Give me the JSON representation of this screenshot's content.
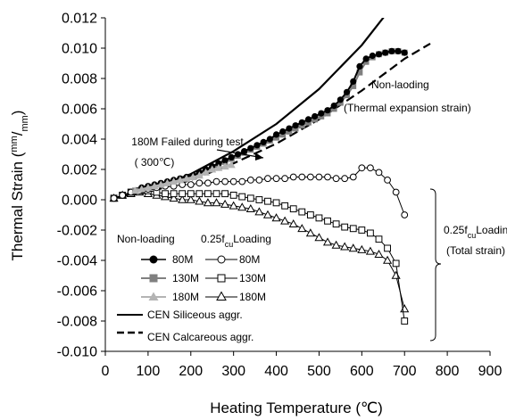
{
  "chart_data": {
    "type": "line",
    "xlabel": "Heating Temperature (℃)",
    "ylabel_prefix": "Thermal Strain (",
    "ylabel_num": "mm",
    "ylabel_den": "mm",
    "ylabel_suffix": ")",
    "xlim": [
      0,
      900
    ],
    "ylim": [
      -0.01,
      0.012
    ],
    "xticks": [
      "0",
      "100",
      "200",
      "300",
      "400",
      "500",
      "600",
      "700",
      "800",
      "900"
    ],
    "yticks": [
      "0.012",
      "0.010",
      "0.008",
      "0.006",
      "0.004",
      "0.002",
      "0.000",
      "-0.002",
      "-0.004",
      "-0.006",
      "-0.008",
      "-0.010"
    ],
    "grid": false,
    "annotations": {
      "failed_line1": "180M Failed during test",
      "failed_line2": "( 300℃)",
      "nonload_line1": "Non-laoding",
      "nonload_line2": "(Thermal expansion strain)",
      "loading_line1_a": "0.25f",
      "loading_line1_sub": "cu",
      "loading_line1_b": "Loading",
      "loading_line2": "(Total strain)"
    },
    "legend": {
      "header_left": "Non-loading",
      "header_right_a": "0.25f",
      "header_right_sub": "cu",
      "header_right_b": "Loading",
      "rows": [
        {
          "left": "80M",
          "right": "80M"
        },
        {
          "left": "130M",
          "right": "130M"
        },
        {
          "left": "180M",
          "right": "180M"
        }
      ],
      "cen_siliceous": "CEN Siliceous aggr.",
      "cen_calcareous": "CEN Calcareous aggr."
    },
    "colors": {
      "s80": "#000000",
      "s130": "#808080",
      "s180": "#b4b4b4",
      "open": "#000000"
    },
    "series": [
      {
        "name": "80M",
        "marker": "circle-filled",
        "color": "#000000",
        "x": [
          85,
          100,
          115,
          130,
          145,
          160,
          175,
          190,
          205,
          220,
          235,
          250,
          265,
          280,
          295,
          310,
          325,
          340,
          355,
          370,
          385,
          400,
          415,
          430,
          445,
          460,
          475,
          490,
          505,
          520,
          535,
          550,
          565,
          580,
          595,
          610,
          625,
          640,
          655,
          670,
          685,
          700
        ],
        "y": [
          0.0008,
          0.0009,
          0.001,
          0.0011,
          0.0012,
          0.0013,
          0.0014,
          0.0015,
          0.0016,
          0.0018,
          0.002,
          0.0022,
          0.0024,
          0.0026,
          0.0028,
          0.003,
          0.0032,
          0.0034,
          0.0036,
          0.0038,
          0.004,
          0.0043,
          0.0045,
          0.0047,
          0.0049,
          0.0051,
          0.0053,
          0.0055,
          0.0057,
          0.0059,
          0.0062,
          0.0066,
          0.0071,
          0.0078,
          0.0088,
          0.0093,
          0.0095,
          0.0096,
          0.0097,
          0.0098,
          0.0098,
          0.0097
        ]
      },
      {
        "name": "130M",
        "marker": "square-filled",
        "color": "#808080",
        "x": [
          70,
          85,
          100,
          115,
          130,
          145,
          160,
          175,
          190,
          205,
          220,
          235,
          250,
          265,
          280,
          295,
          310,
          325,
          340,
          355,
          370,
          385,
          400,
          415,
          430,
          445,
          460,
          475,
          490,
          505,
          520,
          535,
          550,
          565,
          580,
          595,
          610,
          625,
          640,
          655,
          670,
          685,
          700
        ],
        "y": [
          0.0006,
          0.0007,
          0.0008,
          0.0009,
          0.001,
          0.0011,
          0.0012,
          0.0013,
          0.0014,
          0.0015,
          0.0017,
          0.0019,
          0.0021,
          0.0023,
          0.0025,
          0.0027,
          0.0029,
          0.0031,
          0.0033,
          0.0035,
          0.0037,
          0.0039,
          0.0041,
          0.0043,
          0.0045,
          0.0047,
          0.0049,
          0.0051,
          0.0053,
          0.0055,
          0.0057,
          0.006,
          0.0064,
          0.0069,
          0.0075,
          0.0084,
          0.0091,
          0.0094,
          0.0096,
          0.0097,
          0.0098,
          0.0098,
          0.0097
        ]
      },
      {
        "name": "180M",
        "marker": "triangle-filled",
        "color": "#b4b4b4",
        "x": [
          70,
          85,
          100,
          115,
          130,
          145,
          160,
          175,
          190,
          205,
          220,
          235,
          250,
          265,
          280,
          295
        ],
        "y": [
          0.0006,
          0.0007,
          0.0008,
          0.0009,
          0.001,
          0.0011,
          0.0012,
          0.0013,
          0.0014,
          0.0015,
          0.0016,
          0.0018,
          0.002,
          0.0021,
          0.0022,
          0.0023
        ]
      },
      {
        "name": "80M",
        "marker": "circle-open",
        "color": "#000000",
        "x": [
          20,
          40,
          60,
          80,
          100,
          120,
          140,
          160,
          180,
          200,
          220,
          240,
          260,
          280,
          300,
          320,
          340,
          360,
          380,
          400,
          420,
          440,
          460,
          480,
          500,
          520,
          540,
          560,
          580,
          600,
          620,
          640,
          660,
          680,
          700
        ],
        "y": [
          0.0001,
          0.0003,
          0.0005,
          0.0006,
          0.0007,
          0.0008,
          0.0009,
          0.0009,
          0.001,
          0.001,
          0.0011,
          0.0011,
          0.0012,
          0.0012,
          0.0012,
          0.0012,
          0.0013,
          0.0013,
          0.0014,
          0.0014,
          0.0014,
          0.0015,
          0.0015,
          0.0015,
          0.0015,
          0.0015,
          0.0014,
          0.0014,
          0.0015,
          0.0021,
          0.0021,
          0.0018,
          0.0013,
          0.0005,
          -0.001
        ]
      },
      {
        "name": "130M",
        "marker": "square-open",
        "color": "#000000",
        "x": [
          20,
          40,
          60,
          80,
          100,
          120,
          140,
          160,
          180,
          200,
          220,
          240,
          260,
          280,
          300,
          320,
          340,
          360,
          380,
          400,
          420,
          440,
          460,
          480,
          500,
          520,
          540,
          560,
          580,
          600,
          620,
          640,
          660,
          680,
          700
        ],
        "y": [
          0.0001,
          0.0003,
          0.0005,
          0.0006,
          0.0006,
          0.0005,
          0.0004,
          0.0004,
          0.0004,
          0.0004,
          0.0004,
          0.0004,
          0.0004,
          0.0004,
          0.0003,
          0.0002,
          0.0001,
          0.0,
          -0.0001,
          -0.0002,
          -0.0004,
          -0.0006,
          -0.0008,
          -0.001,
          -0.0012,
          -0.0014,
          -0.0016,
          -0.0018,
          -0.0019,
          -0.002,
          -0.0022,
          -0.0026,
          -0.0032,
          -0.0042,
          -0.008
        ]
      },
      {
        "name": "180M",
        "marker": "triangle-open",
        "color": "#000000",
        "x": [
          20,
          40,
          60,
          80,
          100,
          120,
          140,
          160,
          180,
          200,
          220,
          240,
          260,
          280,
          300,
          320,
          340,
          360,
          380,
          400,
          420,
          440,
          460,
          480,
          500,
          520,
          540,
          560,
          580,
          600,
          620,
          640,
          660,
          680,
          700
        ],
        "y": [
          0.0001,
          0.0003,
          0.0004,
          0.0005,
          0.0004,
          0.0003,
          0.0002,
          0.0001,
          0.0,
          0.0,
          -0.0001,
          -0.0002,
          -0.0002,
          -0.0003,
          -0.0004,
          -0.0005,
          -0.0006,
          -0.0008,
          -0.001,
          -0.0012,
          -0.0014,
          -0.0016,
          -0.0019,
          -0.0022,
          -0.0025,
          -0.0028,
          -0.003,
          -0.0031,
          -0.0032,
          -0.0033,
          -0.0034,
          -0.0036,
          -0.004,
          -0.005,
          -0.0072
        ]
      },
      {
        "name": "CEN Siliceous aggr.",
        "marker": "none",
        "style": "solid",
        "color": "#000000",
        "x": [
          20,
          100,
          200,
          300,
          400,
          500,
          600,
          650,
          672
        ],
        "y": [
          0.0001,
          0.0006,
          0.0017,
          0.0032,
          0.005,
          0.0073,
          0.0102,
          0.012,
          0.013
        ]
      },
      {
        "name": "CEN Calcareous aggr.",
        "marker": "none",
        "style": "dashed",
        "color": "#000000",
        "x": [
          20,
          100,
          200,
          300,
          400,
          500,
          600,
          700,
          760
        ],
        "y": [
          0.0001,
          0.0005,
          0.0013,
          0.0024,
          0.0037,
          0.0053,
          0.0072,
          0.0093,
          0.0103
        ]
      }
    ]
  }
}
